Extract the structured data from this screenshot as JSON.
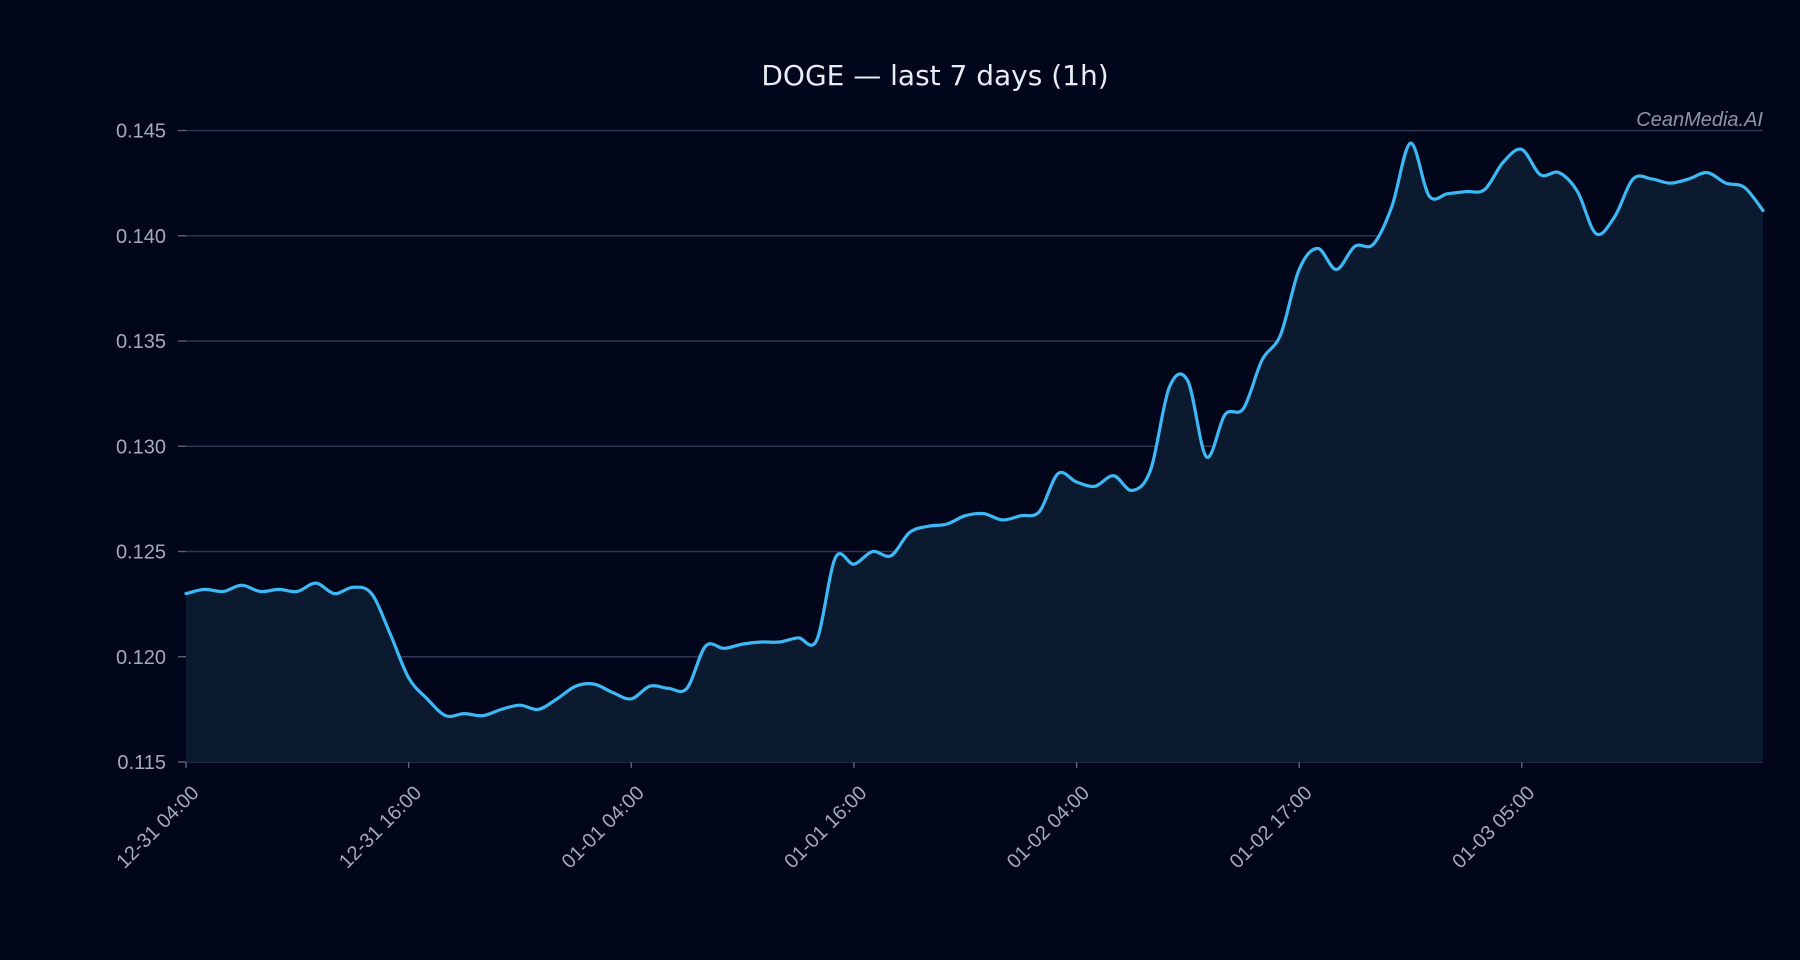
{
  "chart_data": {
    "type": "area",
    "title": "DOGE — last 7 days (1h)",
    "watermark": "CeanMedia.AI",
    "xlabel": "",
    "ylabel": "",
    "ylim": [
      0.115,
      0.1455
    ],
    "yticks": [
      "0.115",
      "0.120",
      "0.125",
      "0.130",
      "0.135",
      "0.140",
      "0.145"
    ],
    "xtick_labels": [
      "12-31 04:00",
      "12-31 16:00",
      "01-01 04:00",
      "01-01 16:00",
      "01-02 04:00",
      "01-02 17:00",
      "01-03 05:00"
    ],
    "xtick_index": [
      0,
      12,
      24,
      36,
      48,
      60,
      72
    ],
    "grid": true,
    "colors": {
      "line": "#3db8f5",
      "fill": "#0b1a2e",
      "background": "#02061a"
    },
    "series": [
      {
        "values": [
          0.123,
          0.1232,
          0.1231,
          0.1234,
          0.1231,
          0.1232,
          0.1231,
          0.1235,
          0.123,
          0.1233,
          0.123,
          0.1211,
          0.119,
          0.118,
          0.1172,
          0.1173,
          0.1172,
          0.1175,
          0.1177,
          0.1175,
          0.118,
          0.1186,
          0.1187,
          0.1183,
          0.118,
          0.1186,
          0.1185,
          0.1185,
          0.1205,
          0.1204,
          0.1206,
          0.1207,
          0.1207,
          0.1209,
          0.1208,
          0.1247,
          0.1244,
          0.125,
          0.1248,
          0.1259,
          0.1262,
          0.1263,
          0.1267,
          0.1268,
          0.1265,
          0.1267,
          0.1269,
          0.1287,
          0.1283,
          0.1281,
          0.1286,
          0.1279,
          0.1289,
          0.1328,
          0.1331,
          0.1295,
          0.1315,
          0.1318,
          0.1341,
          0.1353,
          0.1384,
          0.1394,
          0.1384,
          0.1395,
          0.1396,
          0.1414,
          0.1444,
          0.1419,
          0.142,
          0.1421,
          0.1422,
          0.1435,
          0.1441,
          0.1429,
          0.143,
          0.1421,
          0.1401,
          0.1409,
          0.1427,
          0.1427,
          0.1425,
          0.1427,
          0.143,
          0.1425,
          0.1423,
          0.1412
        ]
      }
    ]
  }
}
